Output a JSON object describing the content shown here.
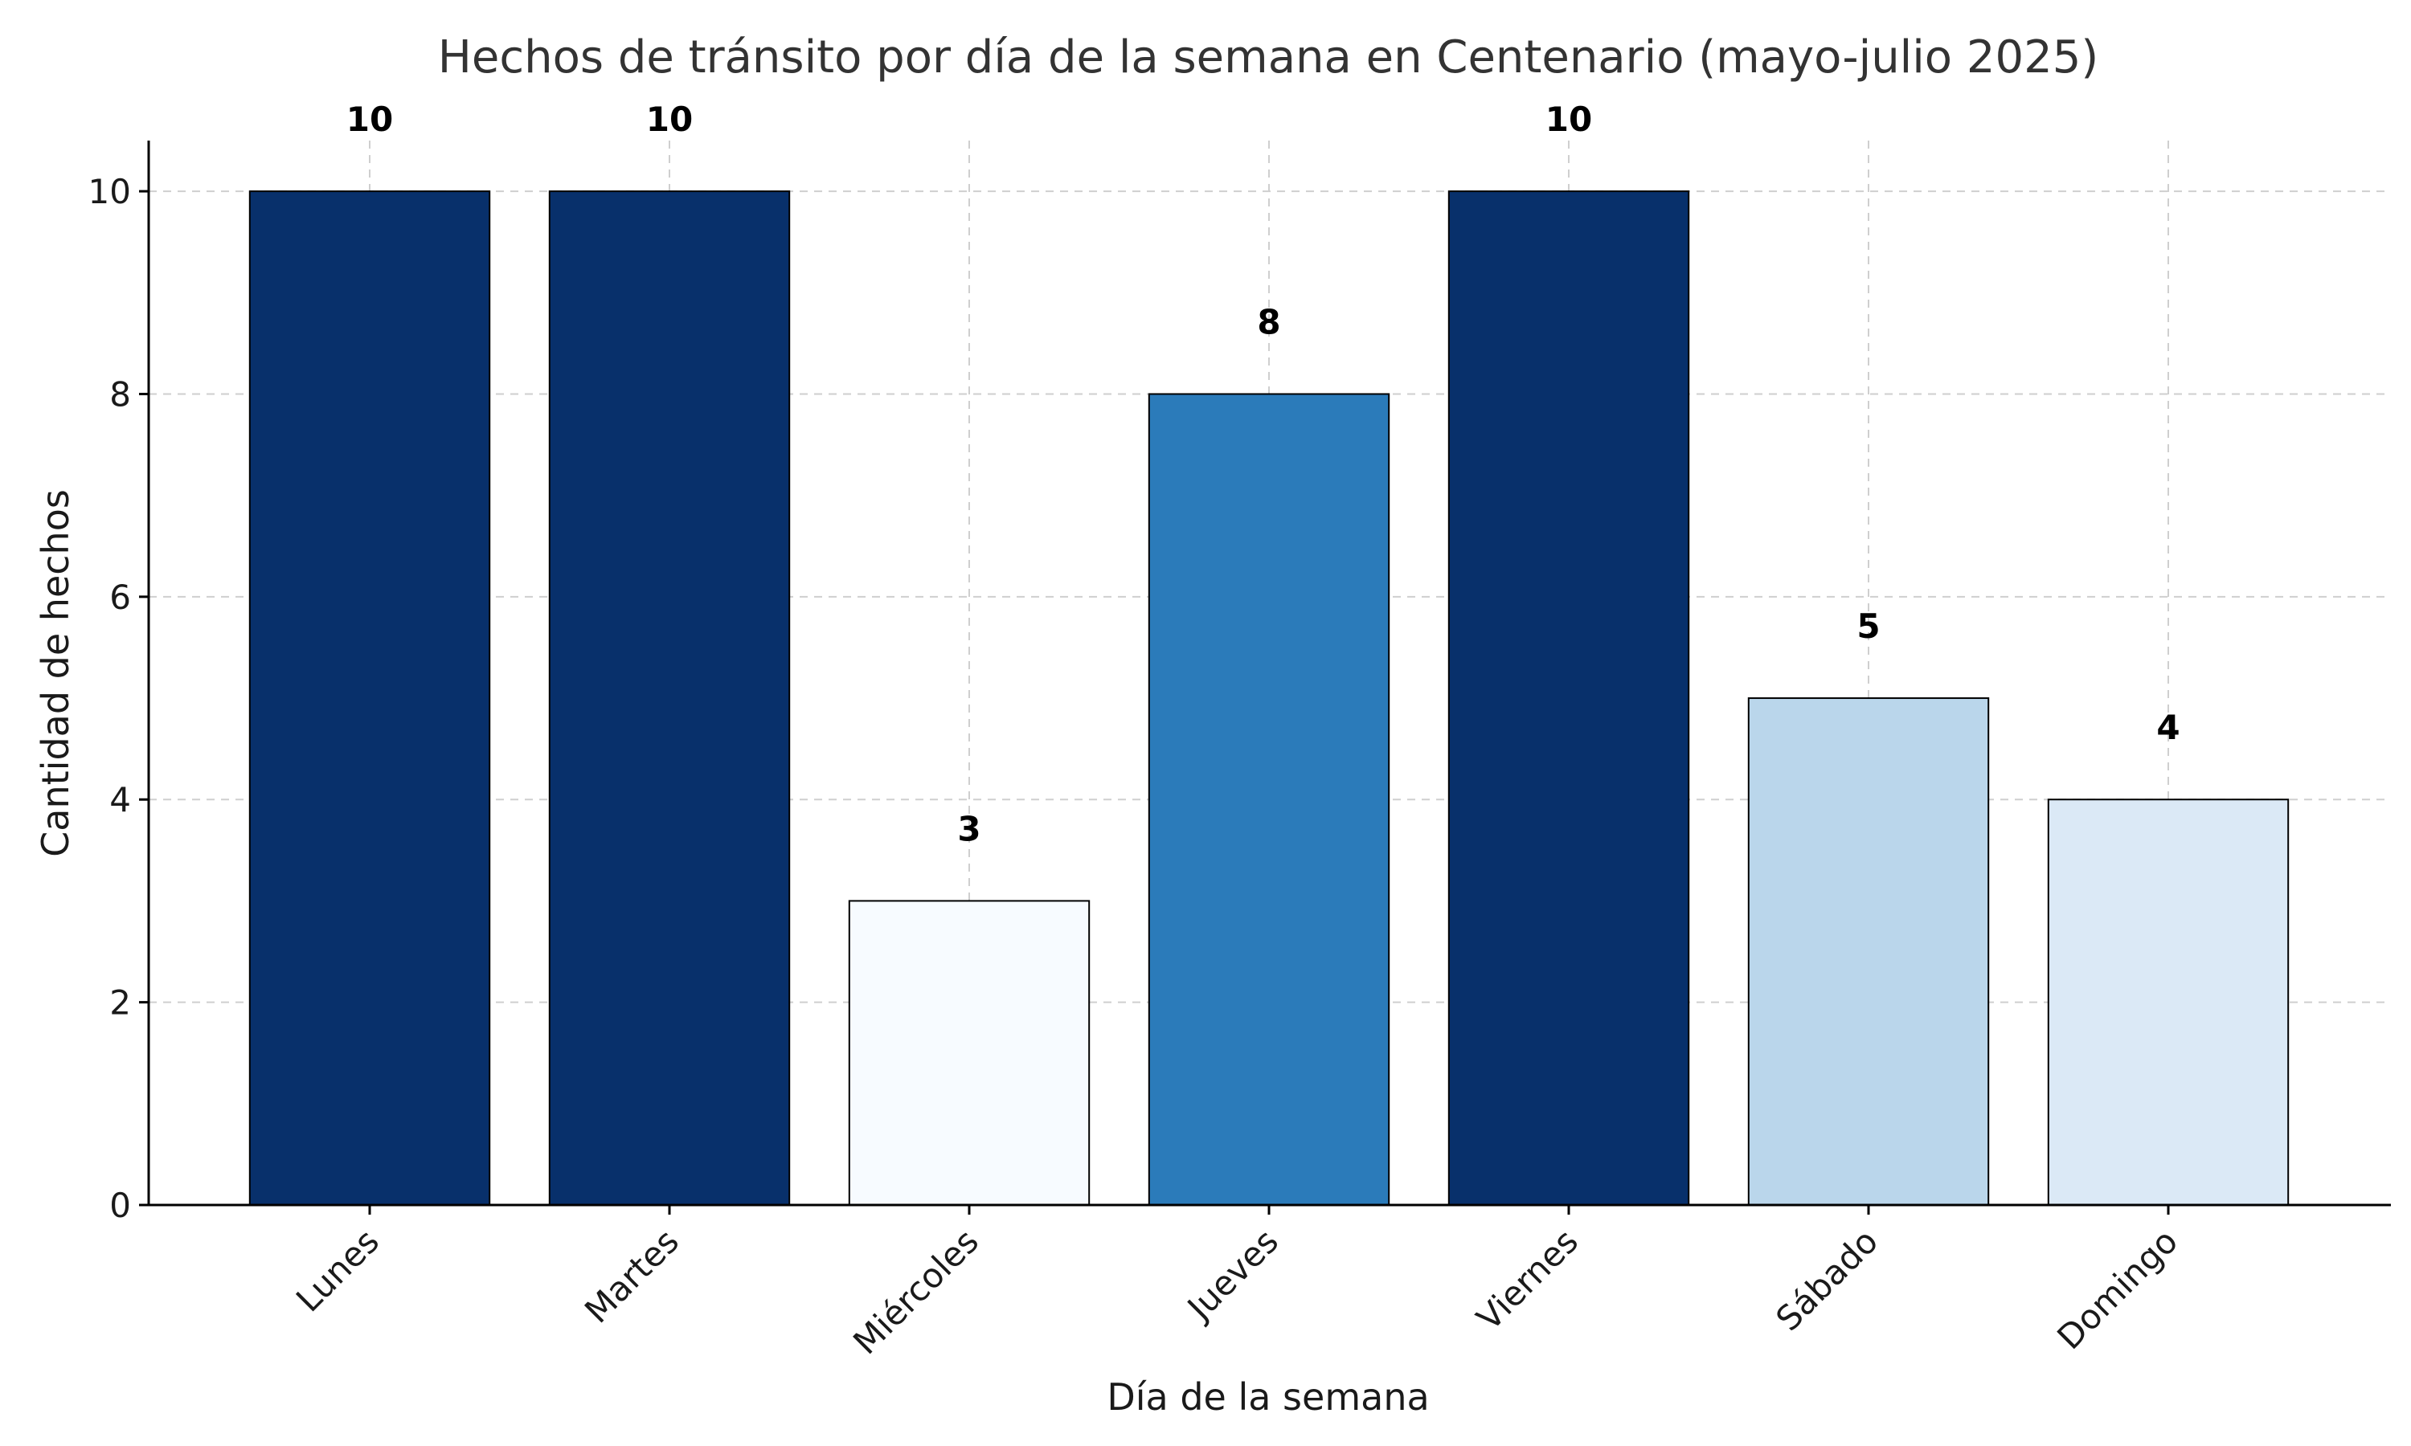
{
  "chart_data": {
    "type": "bar",
    "title": "Hechos de tránsito por día de la semana en Centenario (mayo-julio 2025)",
    "xlabel": "Día de la semana",
    "ylabel": "Cantidad de hechos",
    "categories": [
      "Lunes",
      "Martes",
      "Miércoles",
      "Jueves",
      "Viernes",
      "Sábado",
      "Domingo"
    ],
    "values": [
      10,
      10,
      3,
      8,
      10,
      5,
      4
    ],
    "bar_colors": [
      "#08306b",
      "#08306b",
      "#f7fbff",
      "#2b7bba",
      "#08306b",
      "#bad6eb",
      "#dbe9f6"
    ],
    "ylim": [
      0,
      10.5
    ],
    "yticks": [
      0,
      2,
      4,
      6,
      8,
      10
    ],
    "grid": true,
    "data_labels": true
  }
}
